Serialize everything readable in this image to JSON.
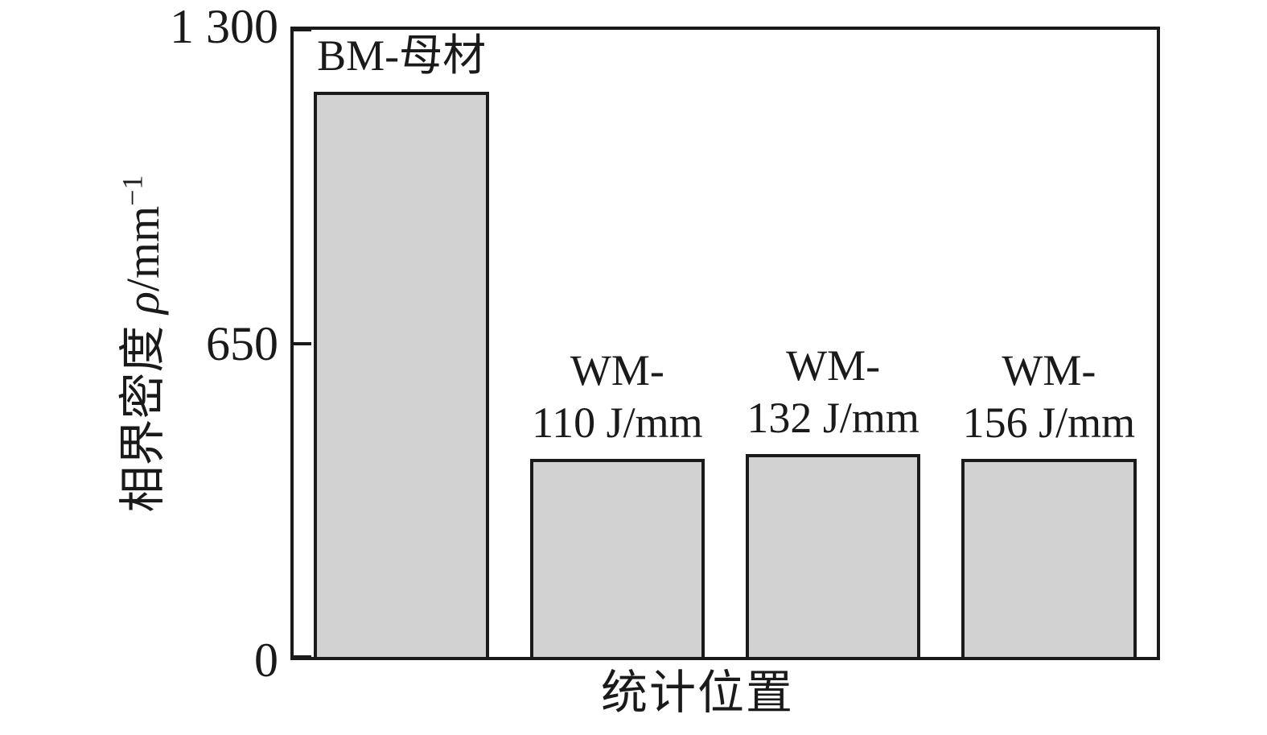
{
  "chart_data": {
    "type": "bar",
    "title": "",
    "categories": [
      "BM-母材",
      "WM-110 J/mm",
      "WM-132 J/mm",
      "WM-156 J/mm"
    ],
    "values": [
      1180,
      410,
      420,
      410
    ],
    "bar_labels": [
      [
        "BM-母材"
      ],
      [
        "WM-",
        "110 J/mm"
      ],
      [
        "WM-",
        "132 J/mm"
      ],
      [
        "WM-",
        "156 J/mm"
      ]
    ],
    "xlabel": "统计位置",
    "ylabel": "相界密度 ρ/mm⁻¹",
    "ylabel_parts": {
      "prefix": "相界密度 ",
      "symbol": "ρ",
      "unit": "/mm",
      "exponent": "−1"
    },
    "ylim": [
      0,
      1300
    ],
    "yticks": [
      {
        "value": 0,
        "label": "0"
      },
      {
        "value": 650,
        "label": "650"
      },
      {
        "value": 1300,
        "label": "1 300"
      }
    ],
    "grid": false,
    "legend_position": "none",
    "bar_fill_color": "#d2d2d2",
    "bar_border_color": "#1a1a1a",
    "axis_color": "#1a1a1a"
  }
}
